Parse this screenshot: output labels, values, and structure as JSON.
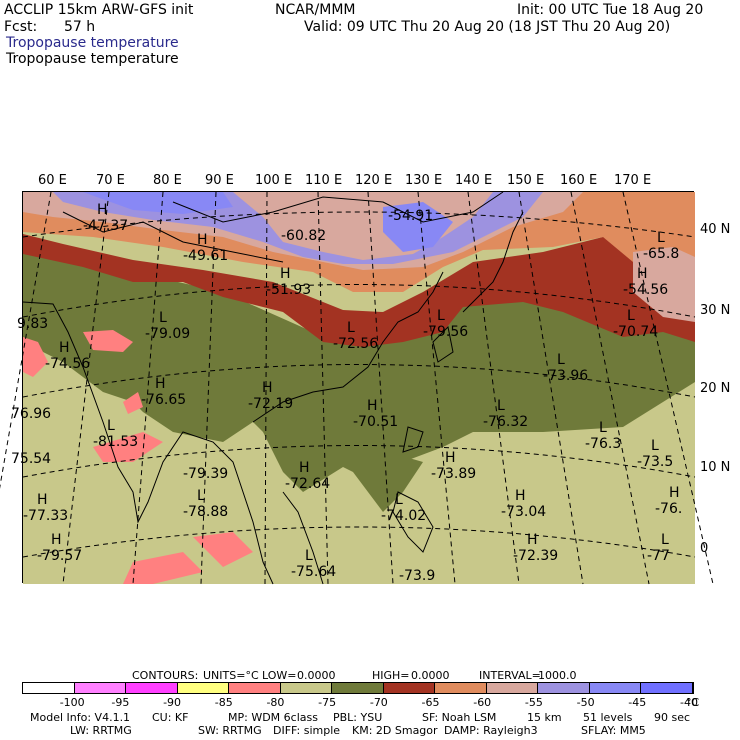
{
  "header": {
    "model": "ACCLIP 15km ARW-GFS init",
    "org": "NCAR/MMM",
    "init": "Init: 00 UTC Tue 18 Aug 20",
    "fcst_label": "Fcst:",
    "fcst_value": "57 h",
    "valid": "Valid: 09 UTC Thu 20 Aug 20 (18 JST Thu 20 Aug 20)",
    "field_title_1": "Tropopause temperature",
    "field_title_2": "Tropopause temperature"
  },
  "map": {
    "longitudes": [
      "60 E",
      "70 E",
      "80 E",
      "90 E",
      "100 E",
      "110 E",
      "120 E",
      "130 E",
      "140 E",
      "150 E",
      "160 E",
      "170 E"
    ],
    "latitudes": [
      "40 N",
      "30 N",
      "20 N",
      "10 N",
      "0"
    ],
    "labels": [
      {
        "mark": "H",
        "value": "-47.37"
      },
      {
        "mark": "",
        "value": "-60.82"
      },
      {
        "mark": "",
        "value": "-54.91"
      },
      {
        "mark": "H",
        "value": "-49.61"
      },
      {
        "mark": "H",
        "value": "-51.93"
      },
      {
        "mark": "L",
        "value": "-65.8"
      },
      {
        "mark": "H",
        "value": "-54.56"
      },
      {
        "mark": "",
        "value": "9.83"
      },
      {
        "mark": "L",
        "value": "-79.09"
      },
      {
        "mark": "L",
        "value": "-72.56"
      },
      {
        "mark": "L",
        "value": "-79.56"
      },
      {
        "mark": "L",
        "value": "-70.74"
      },
      {
        "mark": "H",
        "value": "-74.56"
      },
      {
        "mark": "H",
        "value": "-76.65"
      },
      {
        "mark": "H",
        "value": "-72.19"
      },
      {
        "mark": "L",
        "value": "-73.96"
      },
      {
        "mark": "",
        "value": "76.96"
      },
      {
        "mark": "H",
        "value": "-70.51"
      },
      {
        "mark": "L",
        "value": "-76.32"
      },
      {
        "mark": "L",
        "value": "-81.53"
      },
      {
        "mark": "L",
        "value": "-76.3"
      },
      {
        "mark": "",
        "value": "75.54"
      },
      {
        "mark": "",
        "value": "-79.39"
      },
      {
        "mark": "H",
        "value": "-72.64"
      },
      {
        "mark": "H",
        "value": "-73.89"
      },
      {
        "mark": "L",
        "value": "-73.5"
      },
      {
        "mark": "L",
        "value": "-78.88"
      },
      {
        "mark": "H",
        "value": "-77.33"
      },
      {
        "mark": "L",
        "value": "-74.02"
      },
      {
        "mark": "H",
        "value": "-73.04"
      },
      {
        "mark": "H",
        "value": "-76."
      },
      {
        "mark": "H",
        "value": "-79.57"
      },
      {
        "mark": "L",
        "value": "-75.64"
      },
      {
        "mark": "H",
        "value": "-72.39"
      },
      {
        "mark": "L",
        "value": "-77"
      },
      {
        "mark": "",
        "value": "-73.9"
      }
    ]
  },
  "contours": {
    "contours_label": "CONTOURS:",
    "units_label": "UNITS=°C",
    "low_label": "LOW=",
    "low_value": "0.0000",
    "high_label": "HIGH=",
    "high_value": "0.0000",
    "interval_label": "INTERVAL=",
    "interval_value": "1000.0"
  },
  "colorbar": {
    "colors": [
      "#ffffff",
      "#ff80ff",
      "#ff40ff",
      "#ffff80",
      "#ff8080",
      "#c8c88a",
      "#6f7a3a",
      "#a33322",
      "#e08c5e",
      "#d8a89e",
      "#9d92e0",
      "#8888f5",
      "#7070ff"
    ],
    "tick_labels": [
      "-100",
      "-95",
      "-90",
      "-85",
      "-80",
      "-75",
      "-70",
      "-65",
      "-60",
      "-55",
      "-50",
      "-45",
      "-40"
    ],
    "unit": "°C"
  },
  "footer": {
    "line1": [
      "Model Info: V4.1.1",
      "CU: KF",
      "MP: WDM 6class",
      "PBL: YSU",
      "SF: Noah LSM",
      "15 km",
      "51 levels",
      "90 sec"
    ],
    "line2": [
      "LW: RRTMG",
      "SW: RRTMG",
      "DIFF: simple",
      "KM: 2D Smagor",
      "DAMP: Rayleigh3",
      "SFLAY: MM5"
    ]
  }
}
